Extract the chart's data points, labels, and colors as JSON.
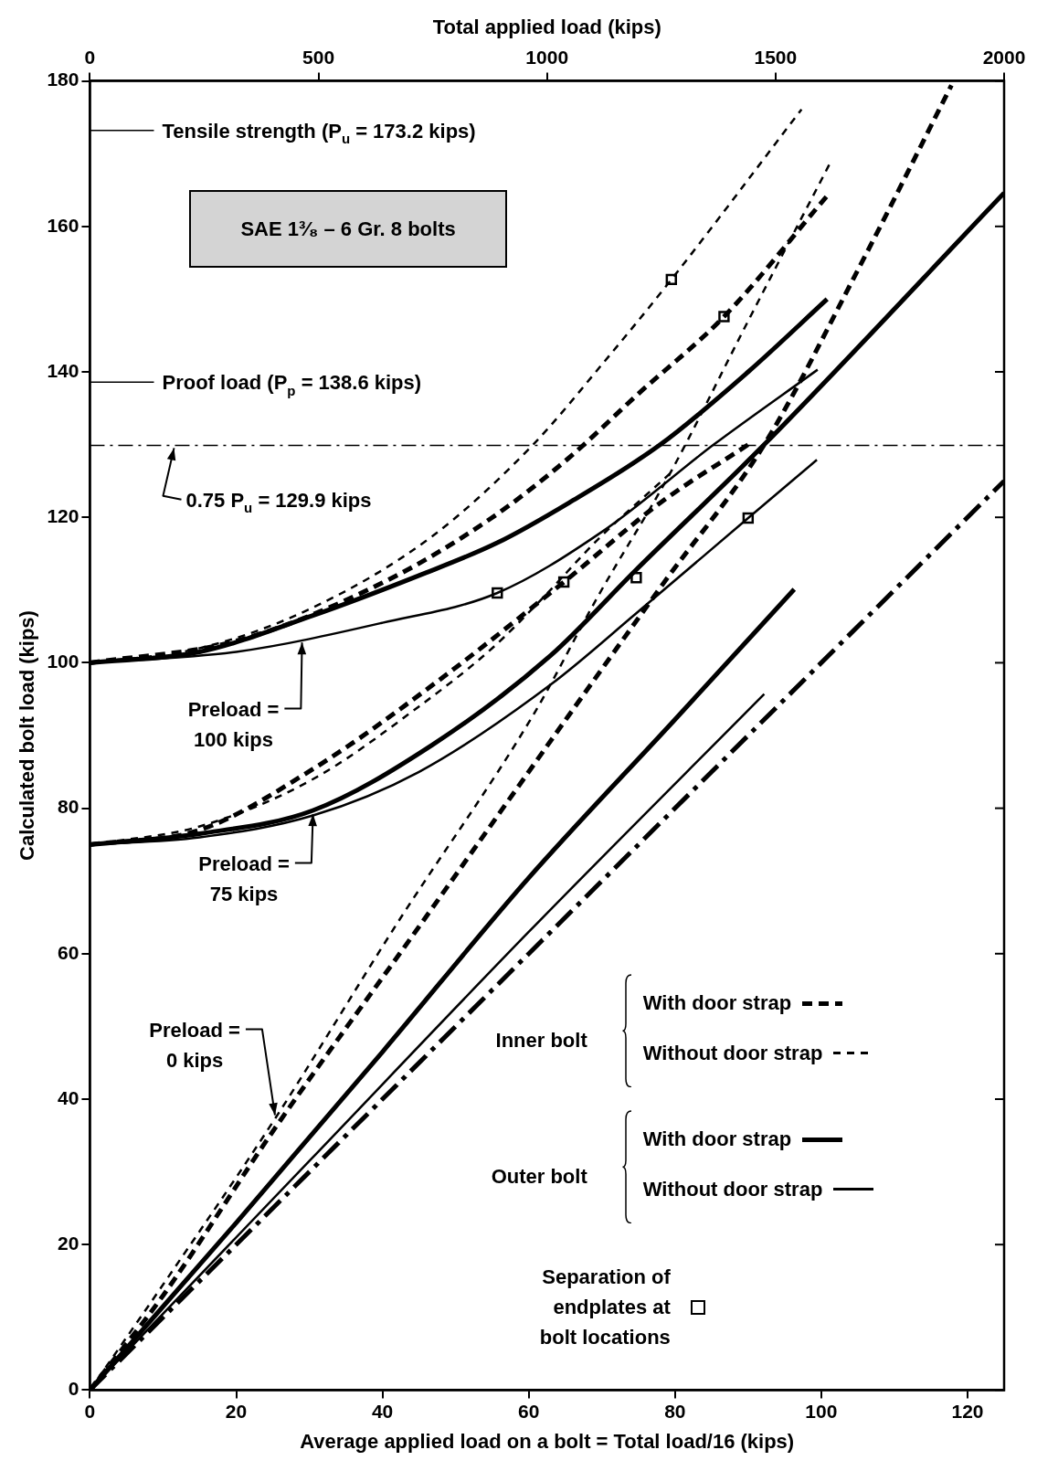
{
  "chart_data": {
    "type": "line",
    "xlabel": "Average applied load on a bolt = Total load/16 (kips)",
    "ylabel": "Calculated bolt load (kips)",
    "x2label": "Total applied load (kips)",
    "xlim": [
      0,
      125
    ],
    "xticks": [
      0,
      20,
      40,
      60,
      80,
      100,
      120
    ],
    "x2lim": [
      0,
      2000
    ],
    "x2ticks": [
      0,
      500,
      1000,
      1500,
      2000
    ],
    "ylim": [
      0,
      180
    ],
    "yticks": [
      0,
      20,
      40,
      60,
      80,
      100,
      120,
      140,
      160,
      180
    ],
    "grid": false,
    "legend": "bottom right",
    "marker": "none",
    "annotations": [
      "SAE 1³⁄₈ – 6 Gr. 8 bolts",
      {
        "text": "Preload = 100 kips",
        "x": 29,
        "y": 103.3
      },
      {
        "text": "Preload = 75 kips",
        "x": 30.5,
        "y": 79.7
      },
      {
        "text": "Preload = 0 kips",
        "x": 25.3,
        "y": 37.3
      },
      "Inner bolt",
      "Outer bolt"
    ],
    "ref_lines": [
      {
        "axis": "y",
        "value": 173.2,
        "label": "Tensile strength (P$_{u}$ = 173.2 kips)",
        "line_style": "solid"
      },
      {
        "axis": "y",
        "value": 138.6,
        "label": "Proof load (P$_{p}$ = 138.6 kips)",
        "line_style": "solid"
      },
      {
        "axis": "y",
        "value": 129.9,
        "label": "0.75 P$_{u}$ = 129.9 kips",
        "line_style": "dashdot"
      }
    ],
    "series": [
      {
        "name": "With door strap",
        "line_style": "dashed",
        "color": "#000000",
        "x": [
          0,
          10,
          25.3,
          45.2,
          65.5,
          78.4,
          92.2,
          105,
          117.8
        ],
        "values": [
          0,
          13,
          36,
          64,
          92.8,
          110.9,
          130,
          154,
          179.4
        ]
      },
      {
        "name": "Without door strap",
        "line_style": "dashed",
        "color": "#000000",
        "x": [
          0,
          10,
          25.3,
          41.9,
          60.6,
          69.5,
          79.3,
          90,
          101.2
        ],
        "values": [
          0,
          14.5,
          37.3,
          64,
          92.8,
          109.2,
          126,
          147,
          168.7
        ]
      },
      {
        "name": "With door strap",
        "line_style": "solid",
        "color": "#000000",
        "x": [
          0,
          20,
          40,
          59.8,
          80,
          96.3
        ],
        "values": [
          0,
          23,
          46.5,
          70.2,
          92.2,
          110.1
        ]
      },
      {
        "name": "Without door strap",
        "line_style": "solid",
        "color": "#000000",
        "x": [
          0,
          30,
          60,
          92.2
        ],
        "values": [
          0,
          31.5,
          63,
          95.7
        ]
      },
      {
        "line_style": "dashed",
        "color": "#000000",
        "x": [
          0,
          15,
          30.5,
          46.8,
          64.8,
          78,
          90
        ],
        "values": [
          75,
          77,
          85.4,
          96.9,
          111.1,
          122,
          130
        ]
      },
      {
        "line_style": "dashed",
        "color": "#000000",
        "x": [
          0,
          15,
          30.5,
          45,
          55,
          62,
          69.5,
          79.3
        ],
        "values": [
          75,
          77.5,
          84,
          94,
          102,
          109,
          117,
          126
        ]
      },
      {
        "line_style": "solid",
        "color": "#000000",
        "x": [
          0,
          15,
          30.5,
          46.8,
          63,
          74.7,
          92.2,
          125
        ],
        "values": [
          75,
          76.5,
          79.7,
          88.7,
          101,
          112.8,
          130,
          164.6
        ]
      },
      {
        "line_style": "solid",
        "color": "#000000",
        "x": [
          0,
          15,
          30.5,
          45,
          63,
          74.7,
          90,
          99.4
        ],
        "values": [
          75,
          76,
          79,
          85,
          97,
          106.8,
          119.9,
          127.9
        ]
      },
      {
        "line_style": "dashed",
        "color": "#000000",
        "x": [
          0,
          20,
          40,
          54.9,
          65.4,
          75,
          86.7,
          100.8
        ],
        "values": [
          100,
          103,
          111,
          119.9,
          128.1,
          137,
          147.6,
          164.2
        ]
      },
      {
        "line_style": "dashed",
        "color": "#000000",
        "x": [
          0,
          15,
          30.5,
          46.8,
          60.6,
          70,
          79.5,
          97.3
        ],
        "values": [
          100,
          102,
          107.6,
          117.4,
          130,
          141,
          152.7,
          176.1
        ]
      },
      {
        "line_style": "solid",
        "color": "#000000",
        "x": [
          0,
          15,
          30.5,
          45,
          55.7,
          65.5,
          78,
          90,
          100.8
        ],
        "values": [
          100,
          101.5,
          106.5,
          112,
          116.5,
          122,
          130,
          140,
          150
        ]
      },
      {
        "line_style": "solid",
        "color": "#000000",
        "x": [
          0,
          20,
          40,
          55.7,
          70,
          85.3,
          99.5
        ],
        "values": [
          100,
          101.5,
          105.5,
          109.6,
          118,
          130,
          140.3
        ]
      },
      {
        "line_style": "dashdot",
        "color": "#000000",
        "x": [
          0,
          125
        ],
        "values": [
          0,
          125
        ]
      },
      {
        "name": "Separation of endplates at bolt locations",
        "type": "scatter",
        "marker": "square",
        "color": "#000000",
        "x": [
          55.7,
          64.8,
          74.7,
          79.5,
          86.7,
          90
        ],
        "values": [
          109.6,
          111.1,
          111.7,
          152.7,
          147.6,
          119.9
        ]
      }
    ]
  }
}
